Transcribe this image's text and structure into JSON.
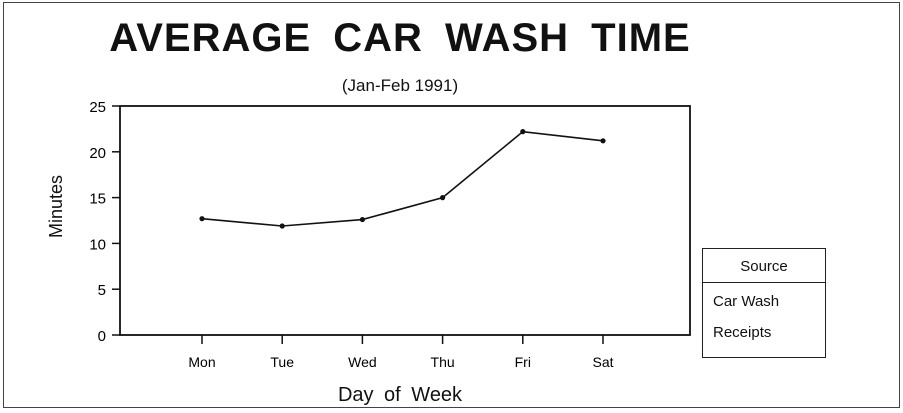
{
  "title": "AVERAGE CAR WASH TIME",
  "subtitle": "(Jan-Feb 1991)",
  "axes": {
    "xlabel": "Day of Week",
    "ylabel": "Minutes",
    "yticks": [
      "0",
      "5",
      "10",
      "15",
      "20",
      "25"
    ],
    "xticks": [
      "Mon",
      "Tue",
      "Wed",
      "Thu",
      "Fri",
      "Sat"
    ]
  },
  "legend": {
    "title": "Source",
    "lines": [
      "Car Wash",
      "Receipts"
    ]
  },
  "chart_data": {
    "type": "line",
    "title": "AVERAGE CAR WASH TIME",
    "subtitle": "(Jan-Feb 1991)",
    "xlabel": "Day of Week",
    "ylabel": "Minutes",
    "categories": [
      "Mon",
      "Tue",
      "Wed",
      "Thu",
      "Fri",
      "Sat"
    ],
    "series": [
      {
        "name": "Car Wash Receipts",
        "values": [
          12.7,
          11.9,
          12.6,
          15.0,
          22.2,
          21.2
        ]
      }
    ],
    "ylim": [
      0,
      25
    ],
    "yticks": [
      0,
      5,
      10,
      15,
      20,
      25
    ],
    "grid": false,
    "legend_position": "right",
    "legend_title": "Source",
    "legend_entries": [
      "Car Wash Receipts"
    ]
  }
}
